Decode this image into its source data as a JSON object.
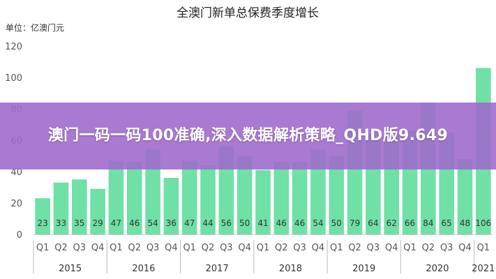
{
  "banner": {
    "text": "澳门一码一码100准确,深入数据解析策略_QHD版9.649"
  },
  "colors": {
    "bar": "#6fe0a6",
    "banner": "#a06ccd",
    "axis": "#555555"
  },
  "chart_data": {
    "type": "bar",
    "title": "全澳门新单总保费季度增长",
    "unit_label": "单位：亿澳门元",
    "ylim": [
      0,
      120
    ],
    "yticks": [
      0,
      20,
      40,
      60,
      80,
      100,
      120
    ],
    "grid": false,
    "categories": [
      "Q1",
      "Q2",
      "Q3",
      "Q4",
      "Q1",
      "Q2",
      "Q3",
      "Q4",
      "Q1",
      "Q2",
      "Q3",
      "Q4",
      "Q1",
      "Q2",
      "Q3",
      "Q4",
      "Q1",
      "Q2",
      "Q3",
      "Q4",
      "Q1",
      "Q2",
      "Q3",
      "Q4",
      "Q1"
    ],
    "years": [
      "2015",
      "2016",
      "2017",
      "2018",
      "2019",
      "2020",
      "2021"
    ],
    "values": [
      23,
      33,
      35,
      29,
      47,
      46,
      54,
      36,
      47,
      44,
      56,
      50,
      41,
      46,
      46,
      54,
      50,
      79,
      64,
      62,
      66,
      84,
      65,
      48,
      106
    ],
    "data_labels": [
      "23",
      "33",
      "35",
      "29",
      "47",
      "46",
      "54",
      "36",
      "47",
      "44",
      "56",
      "50",
      "41",
      "46",
      "46",
      "54",
      "50",
      "79",
      "64",
      "62",
      "66",
      "84",
      "65",
      "48",
      "106"
    ]
  }
}
